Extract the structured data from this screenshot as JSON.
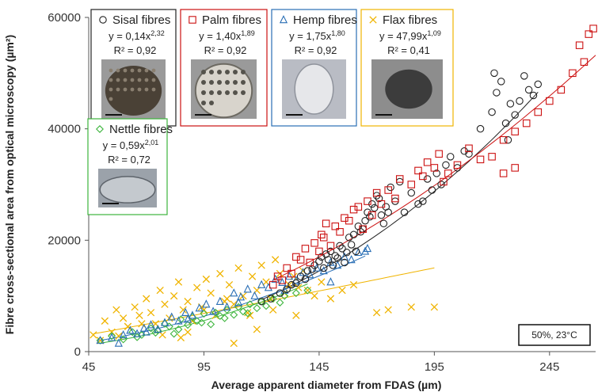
{
  "chart_data": {
    "type": "scatter",
    "xlabel": "Average apparent diameter from FDAS (µm)",
    "ylabel": "Fibre cross-sectional  area from optical microscopy (µm²)",
    "xlim": [
      45,
      265
    ],
    "ylim": [
      0,
      60000
    ],
    "x_ticks": [
      "45",
      "95",
      "145",
      "195",
      "245"
    ],
    "y_ticks": [
      "0",
      "20000",
      "40000",
      "60000"
    ],
    "condition_label": "50%, 23°C",
    "series": [
      {
        "name": "Sisal fibres",
        "marker": "circle",
        "color": "#222222",
        "fit": {
          "a": 0.14,
          "b": 2.32,
          "x_range": [
            120,
            240
          ]
        },
        "equation": {
          "prefix": "y = 0,14x",
          "exp": "2,32"
        },
        "r2": "R² = 0,92",
        "x": [
          120,
          124,
          128,
          131,
          133,
          135,
          137,
          139,
          140,
          142,
          143,
          145,
          146,
          147,
          148,
          149,
          150,
          151,
          152,
          153,
          154,
          155,
          156,
          157,
          158,
          159,
          160,
          161,
          162,
          163,
          164,
          165,
          166,
          167,
          168,
          169,
          170,
          171,
          172,
          173,
          174,
          175,
          176,
          178,
          180,
          182,
          185,
          188,
          190,
          192,
          194,
          196,
          198,
          200,
          202,
          205,
          208,
          210,
          215,
          220,
          222,
          224,
          226,
          228,
          230,
          232,
          234,
          236,
          238,
          240,
          227,
          221
        ],
        "y": [
          9000,
          9500,
          10500,
          11200,
          12000,
          12300,
          13500,
          13000,
          14500,
          14800,
          15500,
          16200,
          17000,
          15000,
          17500,
          16500,
          18000,
          15500,
          17200,
          16800,
          19000,
          18500,
          16000,
          17800,
          20500,
          19200,
          21000,
          18000,
          22500,
          21500,
          22000,
          23500,
          25000,
          24200,
          26500,
          25800,
          28000,
          27500,
          24500,
          23000,
          26000,
          25000,
          29500,
          27000,
          30500,
          25000,
          28500,
          26500,
          27000,
          31000,
          29000,
          32000,
          30000,
          33500,
          35000,
          33000,
          36000,
          35500,
          40000,
          43000,
          46500,
          48500,
          41000,
          44500,
          42500,
          45000,
          49500,
          47000,
          46000,
          48000,
          38000,
          50000
        ]
      },
      {
        "name": "Palm fibres",
        "marker": "square",
        "color": "#cc1111",
        "fit": {
          "a": 1.4,
          "b": 1.89,
          "x_range": [
            125,
            265
          ]
        },
        "equation": {
          "prefix": "y = 1,40x",
          "exp": "1,89"
        },
        "r2": "R² = 0,92",
        "x": [
          125,
          127,
          129,
          131,
          133,
          135,
          137,
          139,
          141,
          143,
          145,
          146,
          147,
          148,
          150,
          152,
          154,
          156,
          158,
          160,
          162,
          164,
          166,
          168,
          170,
          172,
          175,
          178,
          180,
          185,
          188,
          190,
          192,
          195,
          197,
          199,
          201,
          205,
          210,
          215,
          220,
          225,
          230,
          235,
          240,
          245,
          250,
          255,
          258,
          260,
          262,
          264,
          225,
          230
        ],
        "y": [
          12000,
          13500,
          12800,
          15000,
          14000,
          17000,
          16500,
          18500,
          16000,
          19500,
          18000,
          21000,
          20500,
          23000,
          19000,
          22500,
          21500,
          24000,
          23500,
          25500,
          26000,
          22000,
          27000,
          24500,
          28500,
          26500,
          29000,
          27500,
          31000,
          30000,
          32500,
          31500,
          34000,
          33000,
          35500,
          30500,
          32000,
          33500,
          36500,
          34500,
          35000,
          38000,
          39500,
          41000,
          43000,
          45000,
          47000,
          50000,
          55000,
          52000,
          57000,
          58000,
          32000,
          33000
        ]
      },
      {
        "name": "Hemp fibres",
        "marker": "triangle",
        "color": "#2a6fb5",
        "fit": {
          "a": 1.75,
          "b": 1.8,
          "x_range": [
            50,
            165
          ]
        },
        "equation": {
          "prefix": "y = 1,75x",
          "exp": "1,80"
        },
        "r2": "R² = 0,92",
        "x": [
          50,
          55,
          60,
          63,
          66,
          69,
          72,
          75,
          78,
          81,
          84,
          87,
          90,
          93,
          96,
          99,
          102,
          105,
          108,
          111,
          114,
          117,
          120,
          123,
          126,
          129,
          132,
          135,
          138,
          141,
          144,
          147,
          150,
          153,
          156,
          159,
          162,
          165,
          166,
          58,
          70,
          88,
          110,
          130,
          150
        ],
        "y": [
          2000,
          2500,
          3000,
          3800,
          3200,
          4200,
          4800,
          4000,
          5200,
          6200,
          5500,
          7000,
          6500,
          7800,
          8500,
          7200,
          9000,
          8000,
          10500,
          9800,
          11200,
          10000,
          12000,
          11500,
          13000,
          12400,
          13500,
          12800,
          14200,
          13800,
          15000,
          14500,
          16000,
          15500,
          17000,
          16500,
          17800,
          18000,
          18500,
          1500,
          3500,
          5800,
          8800,
          11000,
          12500
        ]
      },
      {
        "name": "Flax fibres",
        "marker": "cross",
        "color": "#f0b400",
        "fit": {
          "a": 47.99,
          "b": 1.09,
          "x_range": [
            47,
            195
          ]
        },
        "equation": {
          "prefix": "y = 47,99x",
          "exp": "1,09"
        },
        "r2": "R² = 0,41",
        "x": [
          47,
          50,
          52,
          55,
          57,
          60,
          62,
          65,
          67,
          70,
          72,
          74,
          76,
          78,
          80,
          82,
          84,
          86,
          88,
          90,
          92,
          94,
          96,
          98,
          100,
          102,
          104,
          106,
          108,
          110,
          112,
          114,
          116,
          118,
          120,
          122,
          124,
          126,
          128,
          130,
          132,
          134,
          136,
          138,
          140,
          143,
          146,
          150,
          155,
          160,
          170,
          175,
          185,
          195,
          62,
          68,
          77,
          85,
          95,
          105,
          115,
          125,
          135,
          58,
          88,
          108,
          118
        ],
        "y": [
          3000,
          2000,
          5500,
          3500,
          7500,
          6000,
          4500,
          8000,
          6500,
          9500,
          7000,
          5000,
          11000,
          8500,
          6000,
          10000,
          12500,
          7500,
          9000,
          5500,
          11500,
          8000,
          13000,
          10500,
          6500,
          14000,
          9000,
          12000,
          8500,
          15000,
          10000,
          7000,
          13500,
          11000,
          15500,
          12500,
          9500,
          16500,
          14000,
          10500,
          12000,
          13500,
          11500,
          14500,
          11000,
          10000,
          12500,
          9500,
          11000,
          12000,
          7000,
          7500,
          8000,
          8000,
          4500,
          5000,
          3000,
          2500,
          7500,
          9500,
          6500,
          7500,
          6500,
          2800,
          3500,
          1500,
          4000
        ]
      },
      {
        "name": "Nettle fibres",
        "marker": "diamond",
        "color": "#3db53d",
        "fit": {
          "a": 0.59,
          "b": 2.01,
          "x_range": [
            50,
            140
          ]
        },
        "equation": {
          "prefix": "y = 0,59x",
          "exp": "2,01"
        },
        "r2": "R² = 0,72",
        "x": [
          50,
          55,
          60,
          64,
          68,
          72,
          75,
          78,
          80,
          82,
          85,
          88,
          90,
          92,
          95,
          98,
          100,
          102,
          105,
          108,
          110,
          112,
          115,
          118,
          120,
          122,
          125,
          128,
          130,
          135,
          140,
          66,
          74,
          84,
          94,
          104,
          114
        ],
        "y": [
          2000,
          2800,
          2200,
          3500,
          3000,
          4200,
          3800,
          5000,
          4500,
          3200,
          5800,
          4800,
          6200,
          5500,
          6800,
          4900,
          7000,
          6400,
          7500,
          6600,
          8000,
          7200,
          8500,
          7800,
          9000,
          8200,
          9500,
          8800,
          10000,
          10500,
          11000,
          2600,
          3400,
          4000,
          5200,
          6000,
          6900
        ]
      }
    ]
  }
}
